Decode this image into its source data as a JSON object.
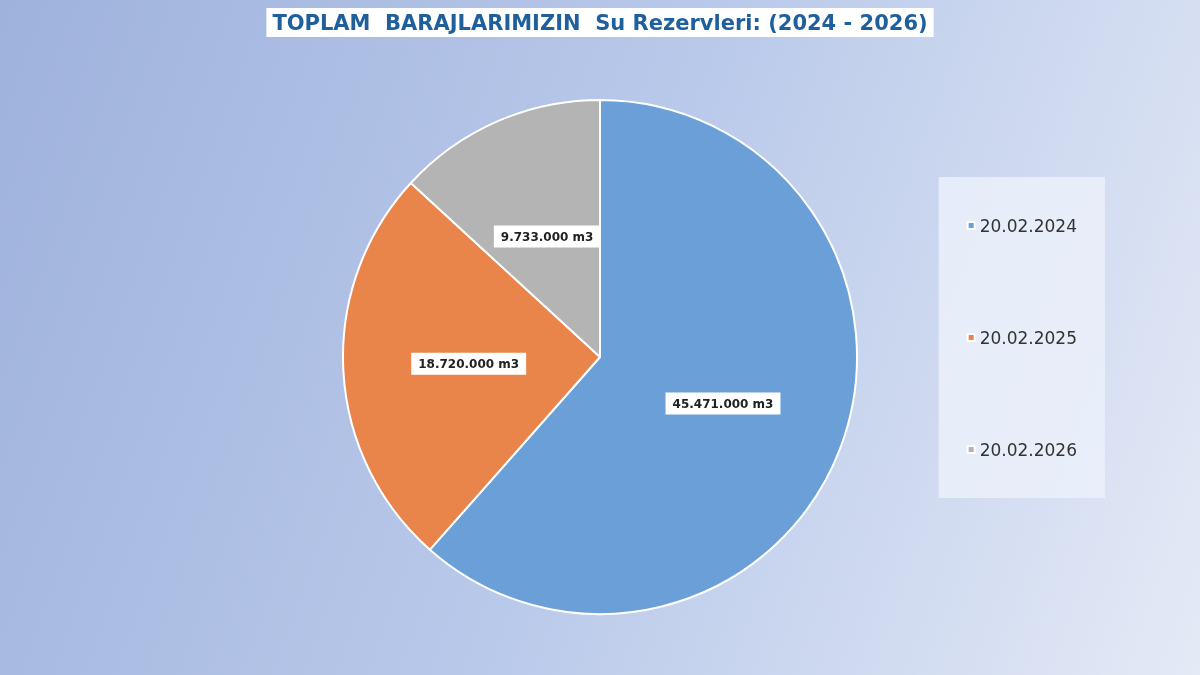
{
  "chart_data": {
    "type": "pie",
    "title": "TOPLAM  BARAJLARIMIZIN  Su Rezervleri: (2024 - 2026)",
    "categories": [
      "20.02.2024",
      "20.02.2025",
      "20.02.2026"
    ],
    "values": [
      45471000,
      18720000,
      9733000
    ],
    "value_labels": [
      "45.471.000 m3",
      "18.720.000 m3",
      "9.733.000 m3"
    ],
    "colors": [
      "#6a9fd8",
      "#e9854a",
      "#b4b4b4"
    ],
    "legend": "right"
  }
}
